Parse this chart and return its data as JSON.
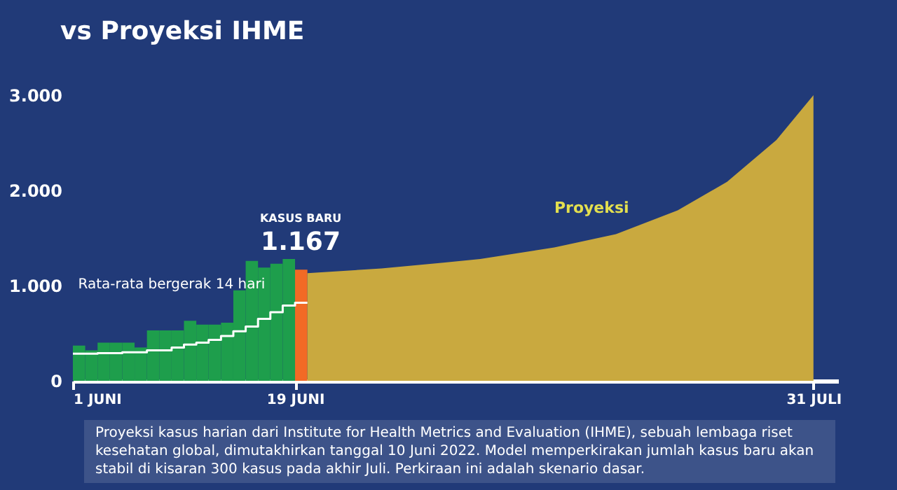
{
  "chart_data": {
    "type": "bar",
    "title": "vs Proyeksi IHME",
    "xlim": [
      "2022-06-01",
      "2022-08-02"
    ],
    "xticks": [
      {
        "value": "2022-06-01",
        "label": "1 JUNI"
      },
      {
        "value": "2022-06-19",
        "label": "19 JUNI"
      },
      {
        "value": "2022-07-31",
        "label": "31 JULI"
      }
    ],
    "ylim": [
      0,
      3000
    ],
    "yticks": [
      0,
      {
        "value": 1000,
        "label": "1.000"
      },
      {
        "value": 2000,
        "label": "2.000"
      },
      {
        "value": 3000,
        "label": "3.000"
      }
    ],
    "series": [
      {
        "color": "#1e9e4c",
        "x": [
          "2022-06-01",
          "2022-06-02",
          "2022-06-03",
          "2022-06-04",
          "2022-06-05",
          "2022-06-06",
          "2022-06-07",
          "2022-06-08",
          "2022-06-09",
          "2022-06-10",
          "2022-06-11",
          "2022-06-12",
          "2022-06-13",
          "2022-06-14",
          "2022-06-15",
          "2022-06-16",
          "2022-06-17",
          "2022-06-18"
        ],
        "values": [
          370,
          320,
          400,
          400,
          400,
          350,
          530,
          530,
          530,
          630,
          590,
          590,
          610,
          950,
          1260,
          1190,
          1230,
          1280
        ]
      },
      {
        "color": "#f26a25",
        "x": [
          "2022-06-19"
        ],
        "values": [
          1167
        ],
        "value_labels": [
          "1.167"
        ]
      },
      {
        "name": "Proyeksi",
        "type": "area",
        "color": "#c9a93f",
        "x": [
          "2022-06-20",
          "2022-06-26",
          "2022-07-01",
          "2022-07-04",
          "2022-07-10",
          "2022-07-15",
          "2022-07-20",
          "2022-07-24",
          "2022-07-28",
          "2022-07-31"
        ],
        "values": [
          1130,
          1180,
          1240,
          1280,
          1400,
          1540,
          1790,
          2090,
          2530,
          3000
        ]
      },
      {
        "name": "Rata-rata bergerak 14 hari",
        "type": "step",
        "color": "#ffffff",
        "x": [
          "2022-06-01",
          "2022-06-03",
          "2022-06-05",
          "2022-06-07",
          "2022-06-09",
          "2022-06-10",
          "2022-06-11",
          "2022-06-12",
          "2022-06-13",
          "2022-06-14",
          "2022-06-15",
          "2022-06-16",
          "2022-06-17",
          "2022-06-18",
          "2022-06-19",
          "2022-06-20"
        ],
        "values": [
          285,
          290,
          300,
          320,
          350,
          380,
          400,
          430,
          470,
          520,
          570,
          650,
          720,
          790,
          820,
          820
        ]
      }
    ],
    "annotations": [
      "KASUS BARU",
      "Proyeksi kasus harian dari Institute for Health Metrics and Evaluation (IHME), sebuah lembaga riset kesehatan global, dimutakhirkan tanggal 10 Juni 2022. Model memperkirakan jumlah kasus baru akan stabil di kisaran 300 kasus pada akhir Juli. Perkiraan ini adalah skenario dasar."
    ]
  }
}
